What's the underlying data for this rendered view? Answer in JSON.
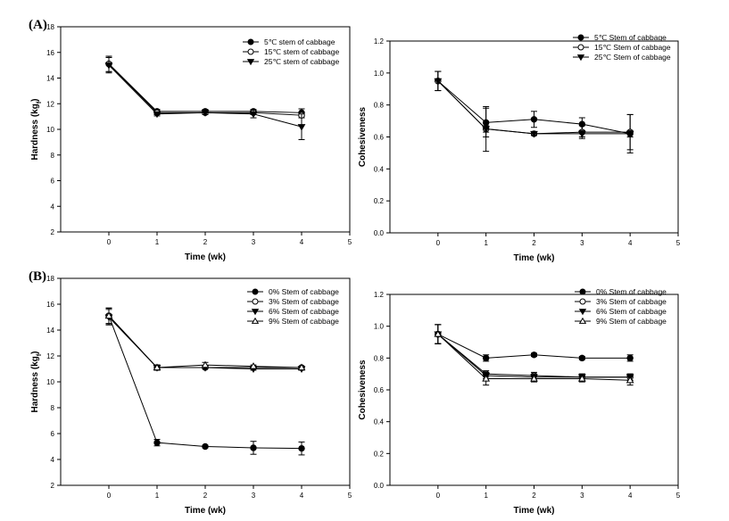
{
  "panels": [
    {
      "label": "(A)"
    },
    {
      "label": "(B)"
    }
  ],
  "chart_data": [
    {
      "type": "line",
      "panel": "A",
      "xlabel": "Time (wk)",
      "ylabel": "Hardness (kg",
      "ylabel_sub": "f",
      "ylabel_suffix": ")",
      "xlim": [
        -1,
        5
      ],
      "ylim": [
        2,
        18
      ],
      "xticks": [
        0,
        1,
        2,
        3,
        4,
        5
      ],
      "yticks": [
        2,
        4,
        6,
        8,
        10,
        12,
        14,
        16,
        18
      ],
      "ytick_decimals": 0,
      "x": [
        0,
        1,
        2,
        3,
        4
      ],
      "legend_position": "top-right",
      "series": [
        {
          "name": "5℃ stem of cabbage",
          "marker": "filled-circle",
          "values": [
            15.1,
            11.4,
            11.4,
            11.4,
            11.3
          ],
          "errors": [
            0.6,
            0.15,
            0.15,
            0.15,
            0.3
          ]
        },
        {
          "name": "15℃ stem of cabbage",
          "marker": "open-circle",
          "values": [
            15.1,
            11.3,
            11.3,
            11.3,
            11.1
          ],
          "errors": [
            0.6,
            0.15,
            0.15,
            0.15,
            0.2
          ]
        },
        {
          "name": "25℃ stem of cabbage",
          "marker": "filled-triangle-down",
          "values": [
            15.0,
            11.2,
            11.3,
            11.2,
            10.2
          ],
          "errors": [
            0.6,
            0.15,
            0.15,
            0.3,
            1.0
          ]
        }
      ]
    },
    {
      "type": "line",
      "panel": "A",
      "xlabel": "Time (wk)",
      "ylabel": "Cohesiveness",
      "xlim": [
        -1,
        5
      ],
      "ylim": [
        0,
        1.2
      ],
      "xticks": [
        0,
        1,
        2,
        3,
        4,
        5
      ],
      "yticks": [
        0,
        0.2,
        0.4,
        0.6,
        0.8,
        1.0,
        1.2
      ],
      "ytick_decimals": 1,
      "x": [
        0,
        1,
        2,
        3,
        4
      ],
      "legend_position": "top-right",
      "series": [
        {
          "name": "5℃ Stem of cabbage",
          "marker": "filled-circle",
          "values": [
            0.95,
            0.69,
            0.71,
            0.68,
            0.62
          ],
          "errors": [
            0.06,
            0.09,
            0.05,
            0.04,
            0.12
          ]
        },
        {
          "name": "15℃ Stem of cabbage",
          "marker": "open-circle",
          "values": [
            0.95,
            0.65,
            0.62,
            0.63,
            0.63
          ],
          "errors": [
            0.06,
            0.14,
            0.01,
            0.04,
            0.11
          ]
        },
        {
          "name": "25℃ Stem of cabbage",
          "marker": "filled-triangle-down",
          "values": [
            0.95,
            0.65,
            0.62,
            0.62,
            0.62
          ],
          "errors": [
            0.06,
            0.02,
            0.01,
            0.02,
            0.02
          ]
        }
      ]
    },
    {
      "type": "line",
      "panel": "B",
      "xlabel": "Time (wk)",
      "ylabel": "Hardness (kg",
      "ylabel_sub": "f",
      "ylabel_suffix": ")",
      "xlim": [
        -1,
        5
      ],
      "ylim": [
        2,
        18
      ],
      "xticks": [
        0,
        1,
        2,
        3,
        4,
        5
      ],
      "yticks": [
        2,
        4,
        6,
        8,
        10,
        12,
        14,
        16,
        18
      ],
      "ytick_decimals": 0,
      "x": [
        0,
        1,
        2,
        3,
        4
      ],
      "legend_position": "top-right",
      "series": [
        {
          "name": "0% Stem of cabbage",
          "marker": "filled-circle",
          "values": [
            15.1,
            5.3,
            5.0,
            4.9,
            4.85
          ],
          "errors": [
            0.6,
            0.25,
            0.1,
            0.5,
            0.5
          ]
        },
        {
          "name": "3% Stem of cabbage",
          "marker": "open-circle",
          "values": [
            15.1,
            11.1,
            11.1,
            11.1,
            11.1
          ],
          "errors": [
            0.6,
            0.2,
            0.1,
            0.1,
            0.1
          ]
        },
        {
          "name": "6% Stem of cabbage",
          "marker": "filled-triangle-down",
          "values": [
            15.0,
            11.1,
            11.1,
            11.0,
            11.0
          ],
          "errors": [
            0.6,
            0.2,
            0.1,
            0.1,
            0.1
          ]
        },
        {
          "name": "9% Stem of cabbage",
          "marker": "open-triangle-up",
          "values": [
            15.1,
            11.1,
            11.3,
            11.2,
            11.1
          ],
          "errors": [
            0.6,
            0.2,
            0.2,
            0.1,
            0.1
          ]
        }
      ]
    },
    {
      "type": "line",
      "panel": "B",
      "xlabel": "Time (wk)",
      "ylabel": "Cohesiveness",
      "xlim": [
        -1,
        5
      ],
      "ylim": [
        0,
        1.2
      ],
      "xticks": [
        0,
        1,
        2,
        3,
        4,
        5
      ],
      "yticks": [
        0,
        0.2,
        0.4,
        0.6,
        0.8,
        1.0,
        1.2
      ],
      "ytick_decimals": 1,
      "x": [
        0,
        1,
        2,
        3,
        4
      ],
      "legend_position": "top-right",
      "series": [
        {
          "name": "0% Stem of cabbage",
          "marker": "filled-circle",
          "values": [
            0.95,
            0.8,
            0.82,
            0.8,
            0.8
          ],
          "errors": [
            0.06,
            0.02,
            0.01,
            0.01,
            0.02
          ]
        },
        {
          "name": "3% Stem of cabbage",
          "marker": "open-circle",
          "values": [
            0.95,
            0.7,
            0.69,
            0.68,
            0.68
          ],
          "errors": [
            0.06,
            0.02,
            0.02,
            0.02,
            0.02
          ]
        },
        {
          "name": "6% Stem of cabbage",
          "marker": "filled-triangle-down",
          "values": [
            0.95,
            0.69,
            0.68,
            0.68,
            0.68
          ],
          "errors": [
            0.06,
            0.02,
            0.02,
            0.02,
            0.02
          ]
        },
        {
          "name": "9% Stem of cabbage",
          "marker": "open-triangle-up",
          "values": [
            0.95,
            0.67,
            0.67,
            0.67,
            0.66
          ],
          "errors": [
            0.06,
            0.04,
            0.02,
            0.02,
            0.03
          ]
        }
      ]
    }
  ]
}
